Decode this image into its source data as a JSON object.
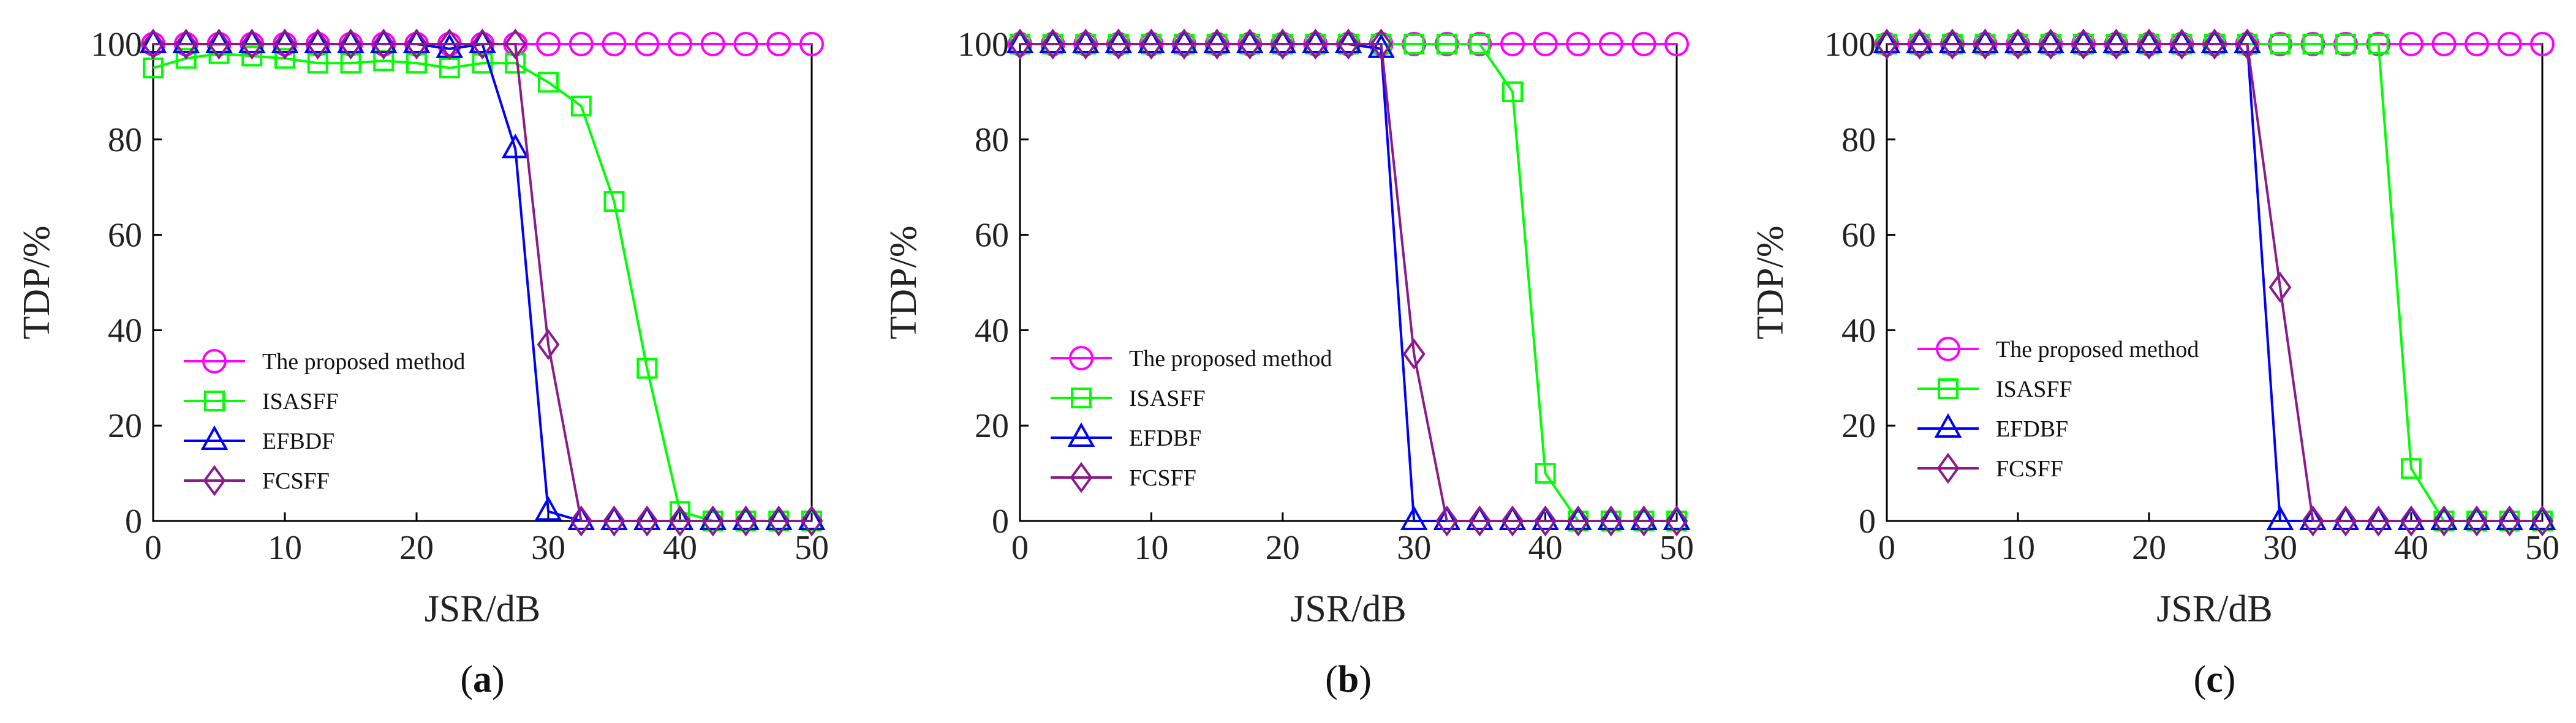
{
  "chart_data": [
    {
      "type": "line",
      "caption": {
        "open": "(",
        "letter": "a",
        "close": ")"
      },
      "xlabel": "JSR/dB",
      "ylabel": "TDP/%",
      "xlim": [
        0,
        50
      ],
      "ylim": [
        0,
        100
      ],
      "xticks": [
        "0",
        "10",
        "20",
        "30",
        "40",
        "50"
      ],
      "yticks": [
        "0",
        "20",
        "40",
        "60",
        "80",
        "100"
      ],
      "legend_position": "lower-left",
      "x": [
        0,
        2.5,
        5,
        7.5,
        10,
        12.5,
        15,
        17.5,
        20,
        22.5,
        25,
        27.5,
        30,
        32.5,
        35,
        37.5,
        40,
        42.5,
        45,
        47.5,
        50
      ],
      "series": [
        {
          "name": "The proposed method",
          "color": "#ff00ff",
          "marker": "circle",
          "values": [
            100,
            100,
            100,
            100,
            100,
            100,
            100,
            100,
            100,
            100,
            100,
            100,
            100,
            100,
            100,
            100,
            100,
            100,
            100,
            100,
            100
          ]
        },
        {
          "name": "ISASFF",
          "color": "#00ff00",
          "marker": "square",
          "values": [
            95,
            97,
            98,
            97.5,
            97,
            96,
            96,
            96.5,
            96,
            95,
            96,
            96,
            92,
            87,
            67,
            32,
            2,
            0,
            0,
            0,
            0
          ]
        },
        {
          "name": "EFBDF",
          "color": "#0000ff",
          "marker": "triangle",
          "values": [
            100,
            100,
            100,
            100,
            100,
            100,
            100,
            100,
            100,
            99,
            100,
            78,
            2,
            0,
            0,
            0,
            0,
            0,
            0,
            0,
            0
          ]
        },
        {
          "name": "FCSFF",
          "color": "#8b1a8b",
          "marker": "diamond",
          "values": [
            100,
            100,
            100,
            100,
            100,
            100,
            100,
            100,
            100,
            100,
            100,
            100,
            37,
            0,
            0,
            0,
            0,
            0,
            0,
            0,
            0
          ]
        }
      ]
    },
    {
      "type": "line",
      "caption": {
        "open": "(",
        "letter": "b",
        "close": ")"
      },
      "xlabel": "JSR/dB",
      "ylabel": "TDP/%",
      "xlim": [
        0,
        50
      ],
      "ylim": [
        0,
        100
      ],
      "xticks": [
        "0",
        "10",
        "20",
        "30",
        "40",
        "50"
      ],
      "yticks": [
        "0",
        "20",
        "40",
        "60",
        "80",
        "100"
      ],
      "legend_position": "lower-left",
      "x": [
        0,
        2.5,
        5,
        7.5,
        10,
        12.5,
        15,
        17.5,
        20,
        22.5,
        25,
        27.5,
        30,
        32.5,
        35,
        37.5,
        40,
        42.5,
        45,
        47.5,
        50
      ],
      "series": [
        {
          "name": "The proposed method",
          "color": "#ff00ff",
          "marker": "circle",
          "values": [
            100,
            100,
            100,
            100,
            100,
            100,
            100,
            100,
            100,
            100,
            100,
            100,
            100,
            100,
            100,
            100,
            100,
            100,
            100,
            100,
            100
          ]
        },
        {
          "name": "ISASFF",
          "color": "#00ff00",
          "marker": "square",
          "values": [
            100,
            100,
            100,
            100,
            100,
            100,
            100,
            100,
            100,
            100,
            100,
            100,
            100,
            100,
            100,
            90,
            10,
            0,
            0,
            0,
            0
          ]
        },
        {
          "name": "EFDBF",
          "color": "#0000ff",
          "marker": "triangle",
          "values": [
            100,
            100,
            100,
            100,
            100,
            100,
            100,
            100,
            100,
            100,
            100,
            99,
            0,
            0,
            0,
            0,
            0,
            0,
            0,
            0,
            0
          ]
        },
        {
          "name": "FCSFF",
          "color": "#8b1a8b",
          "marker": "diamond",
          "values": [
            100,
            100,
            100,
            100,
            100,
            100,
            100,
            100,
            100,
            100,
            100,
            100,
            35,
            0,
            0,
            0,
            0,
            0,
            0,
            0,
            0
          ]
        }
      ]
    },
    {
      "type": "line",
      "caption": {
        "open": "(",
        "letter": "c",
        "close": ")"
      },
      "xlabel": "JSR/dB",
      "ylabel": "TDP/%",
      "xlim": [
        0,
        50
      ],
      "ylim": [
        0,
        100
      ],
      "xticks": [
        "0",
        "10",
        "20",
        "30",
        "40",
        "50"
      ],
      "yticks": [
        "0",
        "20",
        "40",
        "60",
        "80",
        "100"
      ],
      "legend_position": "lower-left",
      "x": [
        0,
        2.5,
        5,
        7.5,
        10,
        12.5,
        15,
        17.5,
        20,
        22.5,
        25,
        27.5,
        30,
        32.5,
        35,
        37.5,
        40,
        42.5,
        45,
        47.5,
        50
      ],
      "series": [
        {
          "name": "The proposed method",
          "color": "#ff00ff",
          "marker": "circle",
          "values": [
            100,
            100,
            100,
            100,
            100,
            100,
            100,
            100,
            100,
            100,
            100,
            100,
            100,
            100,
            100,
            100,
            100,
            100,
            100,
            100,
            100
          ]
        },
        {
          "name": "ISASFF",
          "color": "#00ff00",
          "marker": "square",
          "values": [
            100,
            100,
            100,
            100,
            100,
            100,
            100,
            100,
            100,
            100,
            100,
            100,
            100,
            100,
            100,
            100,
            11,
            0,
            0,
            0,
            0
          ]
        },
        {
          "name": "EFDBF",
          "color": "#0000ff",
          "marker": "triangle",
          "values": [
            100,
            100,
            100,
            100,
            100,
            100,
            100,
            100,
            100,
            100,
            100,
            100,
            0,
            0,
            0,
            0,
            0,
            0,
            0,
            0,
            0
          ]
        },
        {
          "name": "FCSFF",
          "color": "#8b1a8b",
          "marker": "diamond",
          "values": [
            100,
            100,
            100,
            100,
            100,
            100,
            100,
            100,
            100,
            100,
            100,
            100,
            49,
            0,
            0,
            0,
            0,
            0,
            0,
            0,
            0
          ]
        }
      ]
    }
  ]
}
